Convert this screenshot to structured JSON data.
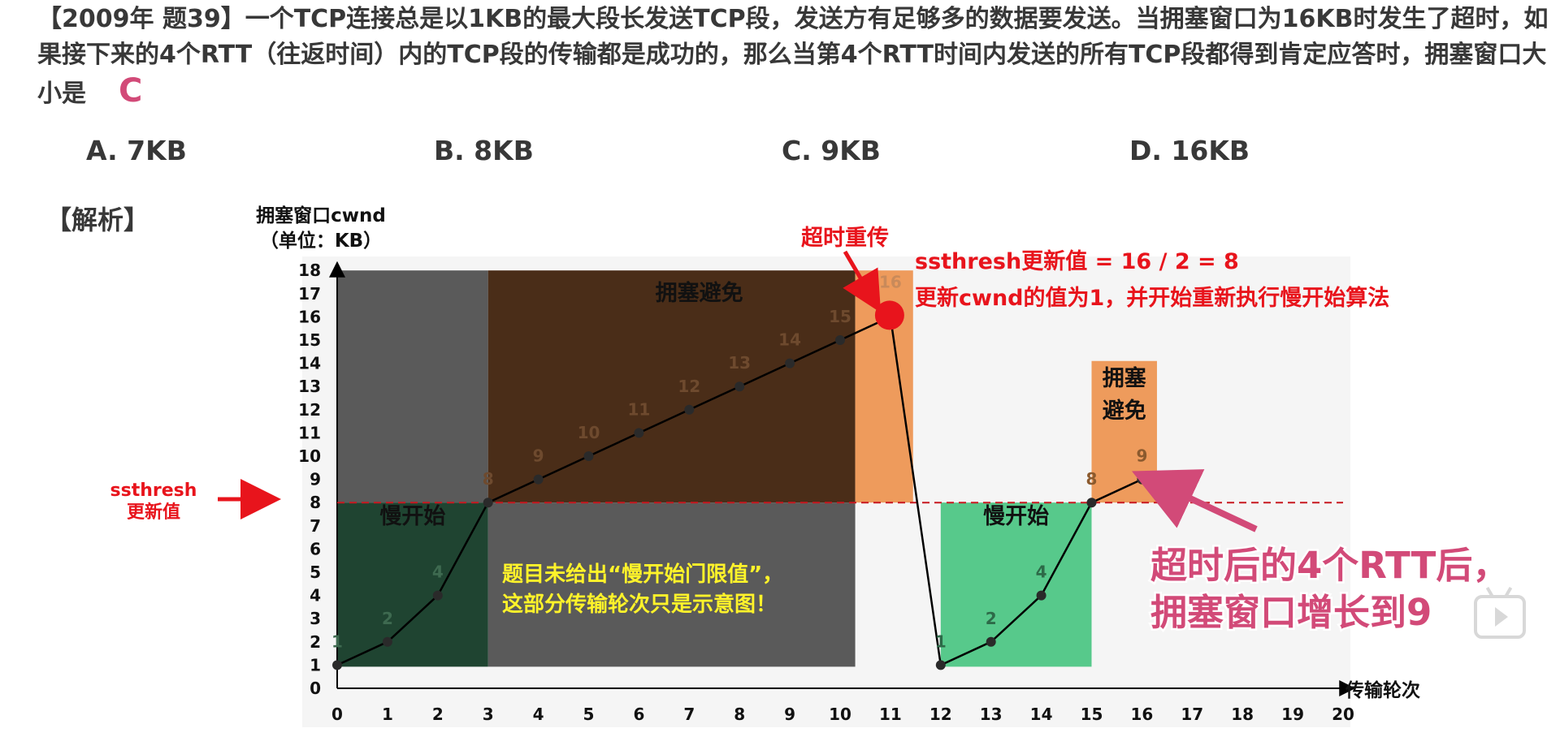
{
  "question": {
    "text": "【2009年 题39】一个TCP连接总是以1KB的最大段长发送TCP段，发送方有足够多的数据要发送。当拥塞窗口为16KB时发生了超时，如果接下来的4个RTT（往返时间）内的TCP段的传输都是成功的，那么当第4个RTT时间内发送的所有TCP段都得到肯定应答时，拥塞窗口大小是",
    "answer_mark": "C"
  },
  "options": [
    {
      "label": "A. 7KB"
    },
    {
      "label": "B. 8KB"
    },
    {
      "label": "C. 9KB"
    },
    {
      "label": "D. 16KB"
    }
  ],
  "analysis_label": "【解析】",
  "colors": {
    "ss_first": "#1f4431",
    "gray_region": "#5a5a5a",
    "ca_first": "#4a2d18",
    "timeout_col": "#ee9b5c",
    "ss_second": "#57c98b",
    "ca_second": "#ee9b5c",
    "red": "#e8141c",
    "pink": "#d24a78",
    "yellow": "#fff32a"
  },
  "chart_data": {
    "type": "line",
    "ylabel_line1": "拥塞窗口cwnd",
    "ylabel_line2": "（单位：KB）",
    "xlabel": "传输轮次",
    "x_ticks": [
      0,
      1,
      2,
      3,
      4,
      5,
      6,
      7,
      8,
      9,
      10,
      11,
      12,
      13,
      14,
      15,
      16,
      17,
      18,
      19,
      20
    ],
    "y_ticks": [
      0,
      1,
      2,
      3,
      4,
      5,
      6,
      7,
      8,
      9,
      10,
      11,
      12,
      13,
      14,
      15,
      16,
      17,
      18
    ],
    "xlim": [
      0,
      20
    ],
    "ylim": [
      0,
      18
    ],
    "series": [
      {
        "x": [
          0,
          1,
          2,
          3,
          4,
          5,
          6,
          7,
          8,
          9,
          10,
          11
        ],
        "y": [
          1,
          2,
          4,
          8,
          9,
          10,
          11,
          12,
          13,
          14,
          15,
          16
        ]
      },
      {
        "x": [
          12,
          13,
          14,
          15,
          16
        ],
        "y": [
          1,
          2,
          4,
          8,
          9
        ]
      }
    ],
    "point_labels": {
      "first": [
        "1",
        "2",
        "4",
        "8",
        "9",
        "10",
        "11",
        "12",
        "13",
        "14",
        "15",
        "16"
      ],
      "second": [
        "1",
        "2",
        "4",
        "8",
        "9"
      ]
    },
    "ssthresh_new": 8,
    "region_labels": {
      "ca_first": "拥塞避免",
      "ss_first": "慢开始",
      "ss_second": "慢开始",
      "ca_second_line1": "拥塞",
      "ca_second_line2": "避免"
    },
    "annotations": {
      "timeout": "超时重传",
      "ssthresh_formula": "ssthresh更新值 = 16 / 2 = 8",
      "cwnd_reset": "更新cwnd的值为1，并开始重新执行慢开始算法",
      "ssthresh_label_line1": "ssthresh",
      "ssthresh_label_line2": "更新值",
      "note_line1": "题目未给出“慢开始门限值”，",
      "note_line2": "这部分传输轮次只是示意图！",
      "result_line1": "超时后的4个RTT后，",
      "result_line2": "拥塞窗口增长到9"
    }
  }
}
